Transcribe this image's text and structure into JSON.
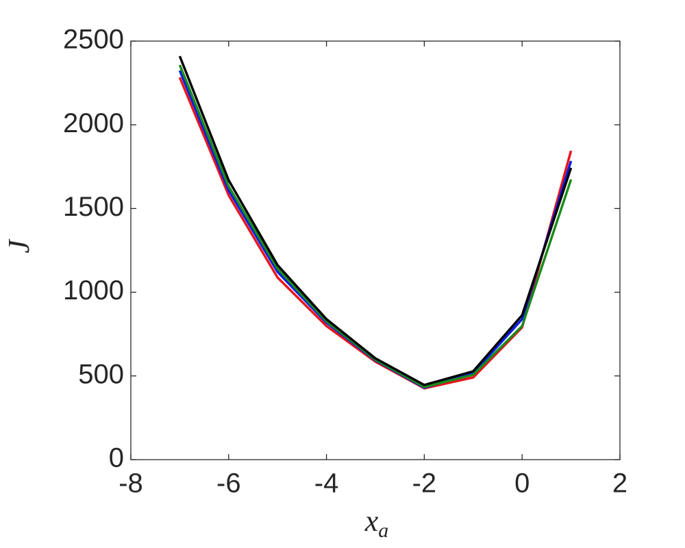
{
  "chart_data": {
    "type": "line",
    "xlabel": {
      "text": "x",
      "subscript": "a"
    },
    "ylabel": "J",
    "x": [
      -7,
      -6,
      -5,
      -4,
      -3,
      -2,
      -1,
      0,
      1
    ],
    "series": [
      {
        "color": "#e8141c",
        "values": [
          2283,
          1579,
          1088,
          798,
          585,
          426,
          491,
          790,
          1845
        ]
      },
      {
        "color": "#0a1ee6",
        "values": [
          2324,
          1608,
          1121,
          818,
          593,
          430,
          516,
          839,
          1784
        ]
      },
      {
        "color": "#1a8a1a",
        "values": [
          2357,
          1632,
          1141,
          826,
          597,
          434,
          507,
          798,
          1673
        ]
      },
      {
        "color": "#000000",
        "values": [
          2410,
          1669,
          1162,
          839,
          605,
          446,
          528,
          863,
          1743
        ]
      }
    ],
    "xlim": [
      -8,
      2
    ],
    "xticks": [
      -8,
      -6,
      -4,
      -2,
      0,
      2
    ],
    "ylim": [
      0,
      2500
    ],
    "yticks": [
      0,
      500,
      1000,
      1500,
      2000,
      2500
    ],
    "grid": false
  }
}
